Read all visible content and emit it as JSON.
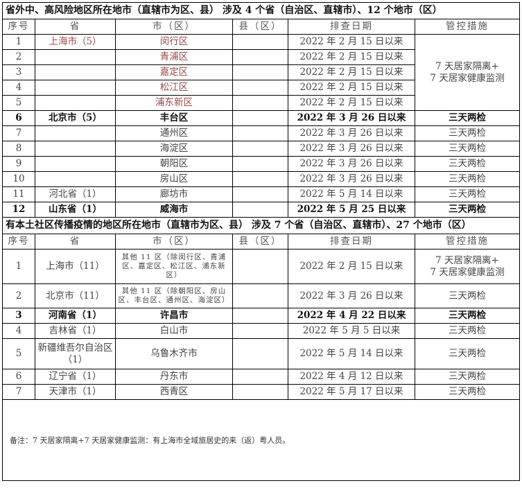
{
  "section1": {
    "title": "省外中、高风险地区所在地市（直辖市为区、县） 涉及 4 个省（自治区、直辖市）、12 个地市（区）",
    "headers": [
      "序号",
      "省",
      "市（区）",
      "县（区）",
      "排查日期",
      "管控措施"
    ],
    "merged_measure": "7 天居家隔离+\n7 天居家健康监测",
    "rows": [
      {
        "no": "1",
        "province": "上海市（5）",
        "city": "闵行区",
        "county": "",
        "date": "2022 年 2 月 15 日以来",
        "measure": "",
        "bold": false
      },
      {
        "no": "2",
        "province": "",
        "city": "青浦区",
        "county": "",
        "date": "2022 年 2 月 15 日以来",
        "measure": "",
        "bold": false
      },
      {
        "no": "3",
        "province": "",
        "city": "嘉定区",
        "county": "",
        "date": "2022 年 2 月 15 日以来",
        "measure": "",
        "bold": false
      },
      {
        "no": "4",
        "province": "",
        "city": "松江区",
        "county": "",
        "date": "2022 年 2 月 15 日以来",
        "measure": "",
        "bold": false
      },
      {
        "no": "5",
        "province": "",
        "city": "浦东新区",
        "county": "",
        "date": "2022 年 2 月 15 日以来",
        "measure": "",
        "bold": false
      },
      {
        "no": "6",
        "province": "北京市（5）",
        "city": "丰台区",
        "county": "",
        "date": "2022 年 3 月 26 日以来",
        "measure": "三天两检",
        "bold": true
      },
      {
        "no": "7",
        "province": "",
        "city": "通州区",
        "county": "",
        "date": "2022 年 3 月 26 日以来",
        "measure": "三天两检",
        "bold": false
      },
      {
        "no": "8",
        "province": "",
        "city": "海淀区",
        "county": "",
        "date": "2022 年 3 月 26 日以来",
        "measure": "三天两检",
        "bold": false
      },
      {
        "no": "9",
        "province": "",
        "city": "朝阳区",
        "county": "",
        "date": "2022 年 3 月 26 日以来",
        "measure": "三天两检",
        "bold": false
      },
      {
        "no": "10",
        "province": "",
        "city": "房山区",
        "county": "",
        "date": "2022 年 3 月 26 日以来",
        "measure": "三天两检",
        "bold": false
      },
      {
        "no": "11",
        "province": "河北省（1）",
        "city": "廊坊市",
        "county": "",
        "date": "2022 年 5 月 14 日以来",
        "measure": "三天两检",
        "bold": false
      },
      {
        "no": "12",
        "province": "山东省（1）",
        "city": "威海市",
        "county": "",
        "date": "2022 年 5 月 25 日以来",
        "measure": "三天两检",
        "bold": true
      }
    ]
  },
  "section2": {
    "title": "有本土社区传播疫情的地区所在地市（直辖市为区、县） 涉及 7 个省（自治区、直辖市）、27 个地市（区）",
    "headers": [
      "序号",
      "省",
      "市（区）",
      "县（区）",
      "排查日期",
      "管控措施"
    ],
    "rows": [
      {
        "no": "1",
        "province": "上海市（11）",
        "city": "其他 11 区（除闵行区、青浦区、嘉定区、松江区、浦东新区）",
        "county": "",
        "date": "2022 年 2 月 15 日以来",
        "measure": "7 天居家隔离+\n7 天居家健康监测",
        "bold": false,
        "small": true,
        "h": 49
      },
      {
        "no": "2",
        "province": "北京市（11）",
        "city": "其他 11 区（除朝阳区、房山区、丰台区、通州区、海淀区）",
        "county": "",
        "date": "2022 年 3 月 26 日以来",
        "measure": "三天两检",
        "bold": false,
        "small": true,
        "h": 34
      },
      {
        "no": "3",
        "province": "河南省（1）",
        "city": "许昌市",
        "county": "",
        "date": "2022 年 4 月 22 日以来",
        "measure": "三天两检",
        "bold": true
      },
      {
        "no": "4",
        "province": "吉林省（1）",
        "city": "白山市",
        "county": "",
        "date": "2022 年 5 月 5 日以来",
        "measure": "三天两检",
        "bold": false
      },
      {
        "no": "5",
        "province": "新疆维吾尔自治区（1）",
        "city": "乌鲁木齐市",
        "county": "",
        "date": "2022 年 5 月 14 日以来",
        "measure": "三天两检",
        "bold": false,
        "h": 43
      },
      {
        "no": "6",
        "province": "辽宁省（1）",
        "city": "丹东市",
        "county": "",
        "date": "2022 年 4 月 12 日以来",
        "measure": "三天两检",
        "bold": false
      },
      {
        "no": "7",
        "province": "天津市（1）",
        "city": "西青区",
        "county": "",
        "date": "2022 年 5 月 17 日以来",
        "measure": "三天两检",
        "bold": false
      }
    ]
  },
  "note": "备注：7 天居家隔离+7 天居家健康监测：有上海市全域旅居史的来（返）粤人员。"
}
